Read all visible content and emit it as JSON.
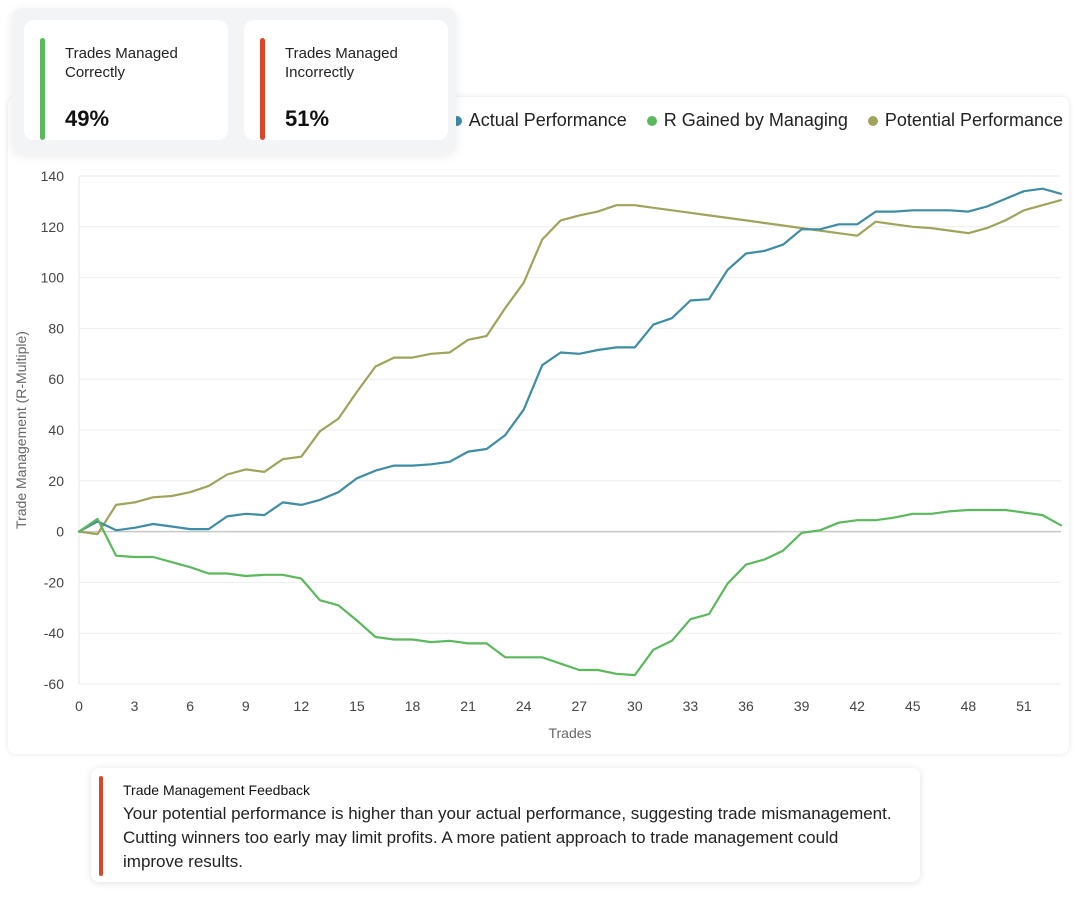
{
  "stats": [
    {
      "label": "Trades Managed Correctly",
      "value": "49%",
      "accent": "#5cb85c"
    },
    {
      "label": "Trades Managed Incorrectly",
      "value": "51%",
      "accent": "#d9472b"
    }
  ],
  "feedback": {
    "title": "Trade Management Feedback",
    "text": "Your potential performance is higher than your actual performance, suggesting trade mismanagement. Cutting winners too early may limit profits. A more patient approach to trade management could improve results.",
    "accent": "#d9472b"
  },
  "chart_data": {
    "type": "line",
    "xlabel": "Trades",
    "ylabel": "Trade Management (R-Multiple)",
    "xlim": [
      0,
      53
    ],
    "ylim": [
      -60,
      140
    ],
    "xticks": [
      "0",
      "3",
      "6",
      "9",
      "12",
      "15",
      "18",
      "21",
      "24",
      "27",
      "30",
      "33",
      "36",
      "39",
      "42",
      "45",
      "48",
      "51"
    ],
    "yticks": [
      "140",
      "120",
      "100",
      "80",
      "60",
      "40",
      "20",
      "0",
      "-20",
      "-40",
      "-60"
    ],
    "legend_position": "top-right",
    "grid": true,
    "x": [
      0,
      1,
      2,
      3,
      4,
      5,
      6,
      7,
      8,
      9,
      10,
      11,
      12,
      13,
      14,
      15,
      16,
      17,
      18,
      19,
      20,
      21,
      22,
      23,
      24,
      25,
      26,
      27,
      28,
      29,
      30,
      31,
      32,
      33,
      34,
      35,
      36,
      37,
      38,
      39,
      40,
      41,
      42,
      43,
      44,
      45,
      46,
      47,
      48,
      49,
      50,
      51,
      52,
      53
    ],
    "series": [
      {
        "name": "Actual Performance",
        "color": "#3f8ca5",
        "values": [
          0,
          4,
          0.5,
          1.5,
          3,
          2,
          1,
          1,
          6,
          7,
          6.5,
          11.5,
          10.5,
          12.5,
          15.5,
          21,
          24,
          26,
          26,
          26.5,
          27.5,
          31.5,
          32.5,
          38,
          48,
          65.5,
          70.5,
          70,
          71.5,
          72.5,
          72.5,
          81.5,
          84,
          91,
          91.5,
          103,
          109.5,
          110.5,
          113,
          119,
          119,
          121,
          121,
          126,
          126,
          126.5,
          126.5,
          126.5,
          126,
          128,
          131,
          134,
          135,
          133
        ]
      },
      {
        "name": "R Gained by Managing",
        "color": "#5cb85c",
        "values": [
          0,
          5,
          -9.5,
          -10,
          -10,
          -12,
          -14,
          -16.5,
          -16.5,
          -17.5,
          -17,
          -17,
          -18.5,
          -27,
          -29,
          -35,
          -41.5,
          -42.5,
          -42.5,
          -43.5,
          -43,
          -44,
          -44,
          -49.5,
          -49.5,
          -49.5,
          -52,
          -54.5,
          -54.5,
          -56,
          -56.5,
          -46.5,
          -43,
          -34.5,
          -32.5,
          -20.5,
          -13,
          -11,
          -7.5,
          -0.5,
          0.5,
          3.5,
          4.5,
          4.5,
          5.5,
          7,
          7,
          8,
          8.5,
          8.5,
          8.5,
          7.5,
          6.5,
          2.5
        ]
      },
      {
        "name": "Potential Performance",
        "color": "#a0a35a",
        "values": [
          0,
          -1,
          10.5,
          11.5,
          13.5,
          14,
          15.5,
          18,
          22.5,
          24.5,
          23.5,
          28.5,
          29.5,
          39.5,
          44.5,
          55,
          65,
          68.5,
          68.5,
          70,
          70.5,
          75.5,
          77,
          88,
          98,
          115,
          122.5,
          124.5,
          126,
          128.5,
          128.5,
          127.5,
          126.5,
          125.5,
          124.5,
          123.5,
          122.5,
          121.5,
          120.5,
          119.5,
          118.5,
          117.5,
          116.5,
          122,
          121,
          120,
          119.5,
          118.5,
          117.5,
          119.5,
          122.5,
          126.5,
          128.5,
          130.5
        ]
      }
    ]
  }
}
